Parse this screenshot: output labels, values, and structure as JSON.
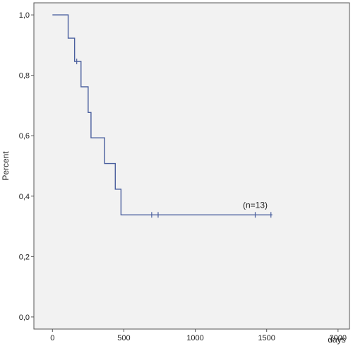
{
  "chart_data": {
    "type": "line",
    "step": true,
    "title": "",
    "xlabel": "days",
    "ylabel": "Percent",
    "xlim": [
      -130,
      2080
    ],
    "ylim": [
      -0.04,
      1.04
    ],
    "x_ticks": [
      0,
      500,
      1000,
      1500,
      2000
    ],
    "x_tick_labels": [
      "0",
      "500",
      "1000",
      "1500",
      "2000"
    ],
    "y_ticks": [
      0,
      0.2,
      0.4,
      0.6,
      0.8,
      1.0
    ],
    "y_tick_labels": [
      "0,0",
      "0,2",
      "0,4",
      "0,6",
      "0,8",
      "1,0"
    ],
    "grid": false,
    "colors": {
      "line": "#4a5f9e",
      "background": "#f2f2f2",
      "axis": "#555555"
    },
    "series": [
      {
        "x": [
          0,
          110,
          155,
          200,
          250,
          270,
          365,
          440,
          480,
          1540
        ],
        "y": [
          1.0,
          0.923,
          0.846,
          0.762,
          0.677,
          0.593,
          0.508,
          0.423,
          0.338,
          0.338
        ]
      }
    ],
    "censored": [
      {
        "x": 170,
        "y": 0.846
      },
      {
        "x": 695,
        "y": 0.338
      },
      {
        "x": 740,
        "y": 0.338
      },
      {
        "x": 1420,
        "y": 0.338
      },
      {
        "x": 1530,
        "y": 0.338
      }
    ],
    "annotations": [
      {
        "text": "(n=13)",
        "x": 1420,
        "y": 0.338
      }
    ]
  }
}
